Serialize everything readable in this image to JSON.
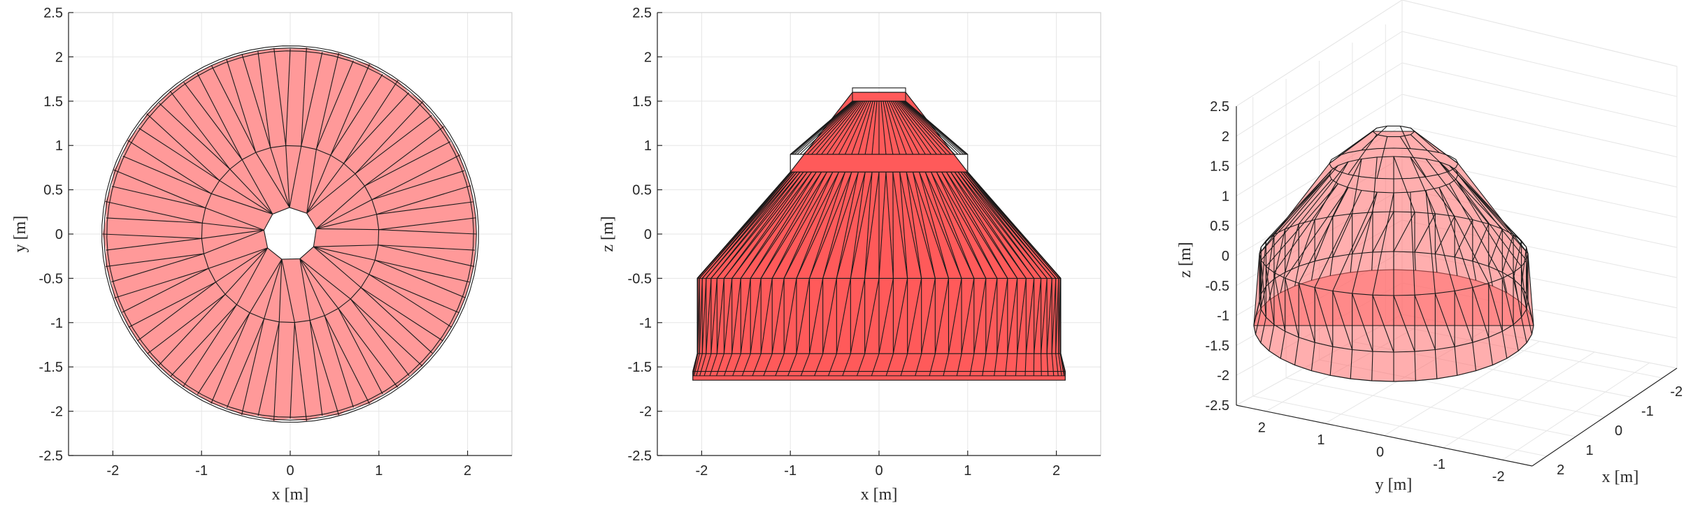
{
  "chart_data": [
    {
      "type": "mesh",
      "view": "top",
      "xlabel": "x [m]",
      "ylabel": "y [m]",
      "xlim": [
        -2.5,
        2.5
      ],
      "ylim": [
        -2.5,
        2.5
      ],
      "xticks": [
        "-2",
        "-1",
        "0",
        "1",
        "2"
      ],
      "yticks": [
        "2.5",
        "2",
        "1.5",
        "1",
        "0.5",
        "0",
        "-0.5",
        "-1",
        "-1.5",
        "-2",
        "-2.5"
      ],
      "grid": true,
      "face_color": "#ff9999",
      "radii_m": {
        "outer": 2.1,
        "middle": 1.0,
        "inner": 0.3
      }
    },
    {
      "type": "mesh",
      "view": "front",
      "xlabel": "x [m]",
      "ylabel": "z [m]",
      "xlim": [
        -2.5,
        2.5
      ],
      "ylim": [
        -2.5,
        2.5
      ],
      "xticks": [
        "-2",
        "-1",
        "0",
        "1",
        "2"
      ],
      "yticks": [
        "2.5",
        "2",
        "1.5",
        "1",
        "0.5",
        "0",
        "-0.5",
        "-1",
        "-1.5",
        "-2",
        "-2.5"
      ],
      "grid": true,
      "face_color": "#ff5a5a",
      "profile_m": [
        [
          2.1,
          -1.65
        ],
        [
          2.1,
          -1.55
        ],
        [
          2.05,
          -1.35
        ],
        [
          2.05,
          -0.5
        ],
        [
          1.0,
          0.7
        ],
        [
          0.3,
          1.6
        ]
      ]
    },
    {
      "type": "mesh",
      "view": "3d",
      "xlabel": "x [m]",
      "ylabel": "y [m]",
      "zlabel": "z [m]",
      "xticks": [
        "2",
        "1",
        "0",
        "-1",
        "-2"
      ],
      "yticks": [
        "2",
        "1",
        "0",
        "-1",
        "-2"
      ],
      "zticks": [
        "2.5",
        "2",
        "1.5",
        "1",
        "0.5",
        "0",
        "-0.5",
        "-1",
        "-1.5",
        "-2",
        "-2.5"
      ],
      "grid": true,
      "face_color": "#ff6b6b"
    }
  ]
}
